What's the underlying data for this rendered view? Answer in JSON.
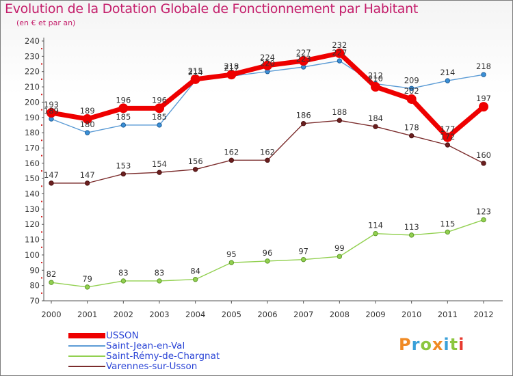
{
  "title": "Evolution de la Dotation Globale de Fonctionnement par Habitant",
  "subtitle": "(en € et par an)",
  "logo": {
    "text": "Proxiti",
    "colors": [
      "#f08a24",
      "#3aa0d8",
      "#8cc63f",
      "#f08a24",
      "#3aa0d8",
      "#8cc63f",
      "#e73a2f"
    ]
  },
  "chart_data": {
    "type": "line",
    "categories": [
      "2000",
      "2001",
      "2002",
      "2003",
      "2004",
      "2005",
      "2006",
      "2007",
      "2008",
      "2009",
      "2010",
      "2011",
      "2012"
    ],
    "ylim": [
      70,
      240
    ],
    "yticks": [
      70,
      80,
      90,
      100,
      110,
      120,
      130,
      140,
      150,
      160,
      170,
      180,
      190,
      200,
      210,
      220,
      230,
      240
    ],
    "grid": false,
    "legend_position": "bottom-left",
    "series": [
      {
        "name": "USSON",
        "color": "#ee0000",
        "values": [
          193,
          189,
          196,
          196,
          215,
          218,
          224,
          227,
          232,
          210,
          202,
          177,
          197
        ]
      },
      {
        "name": "Saint-Jean-en-Val",
        "color": "#5b9bd5",
        "values": [
          189,
          180,
          185,
          185,
          214,
          217,
          220,
          223,
          227,
          212,
          209,
          214,
          218
        ]
      },
      {
        "name": "Saint-Rémy-de-Chargnat",
        "color": "#92d050",
        "values": [
          82,
          79,
          83,
          83,
          84,
          95,
          96,
          97,
          99,
          114,
          113,
          115,
          123
        ]
      },
      {
        "name": "Varennes-sur-Usson",
        "color": "#7b2c2c",
        "values": [
          147,
          147,
          153,
          154,
          156,
          162,
          162,
          186,
          188,
          184,
          178,
          172,
          160
        ]
      }
    ]
  }
}
